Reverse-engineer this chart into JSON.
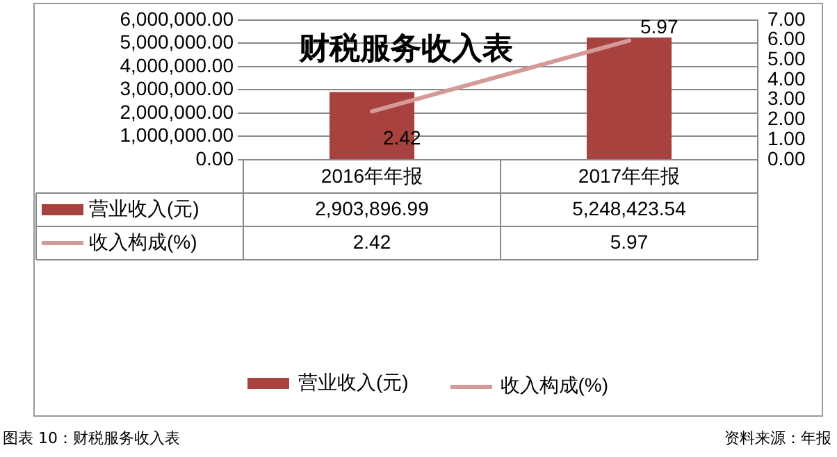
{
  "chart_data": {
    "type": "bar",
    "title": "财税服务收入表",
    "categories": [
      "2016年年报",
      "2017年年报"
    ],
    "series": [
      {
        "name": "营业收入(元)",
        "color": "#a8423f",
        "values": [
          2903896.99,
          5248423.54
        ],
        "value_labels": [
          "2,903,896.99",
          "5,248,423.54"
        ]
      },
      {
        "name": "收入构成(%)",
        "type": "line",
        "axis": "y2",
        "color": "#d39a98",
        "values": [
          2.42,
          5.97
        ],
        "value_labels": [
          "2.42",
          "5.97"
        ]
      }
    ],
    "ylim": [
      0,
      6000000
    ],
    "yticks": [
      {
        "value": 0,
        "label": "0.00"
      },
      {
        "value": 1000000,
        "label": "1,000,000.00"
      },
      {
        "value": 2000000,
        "label": "2,000,000.00"
      },
      {
        "value": 3000000,
        "label": "3,000,000.00"
      },
      {
        "value": 4000000,
        "label": "4,000,000.00"
      },
      {
        "value": 5000000,
        "label": "5,000,000.00"
      },
      {
        "value": 6000000,
        "label": "6,000,000.00"
      }
    ],
    "y2lim": [
      0,
      7
    ],
    "y2ticks": [
      {
        "value": 0,
        "label": "0.00"
      },
      {
        "value": 1,
        "label": "1.00"
      },
      {
        "value": 2,
        "label": "2.00"
      },
      {
        "value": 3,
        "label": "3.00"
      },
      {
        "value": 4,
        "label": "4.00"
      },
      {
        "value": 5,
        "label": "5.00"
      },
      {
        "value": 6,
        "label": "6.00"
      },
      {
        "value": 7,
        "label": "7.00"
      }
    ],
    "grid": "y",
    "legend": "bottom",
    "marker": "none",
    "line_style": "solid",
    "annotations": [
      "图表 10：财税服务收入表",
      "资料来源：年报"
    ]
  }
}
